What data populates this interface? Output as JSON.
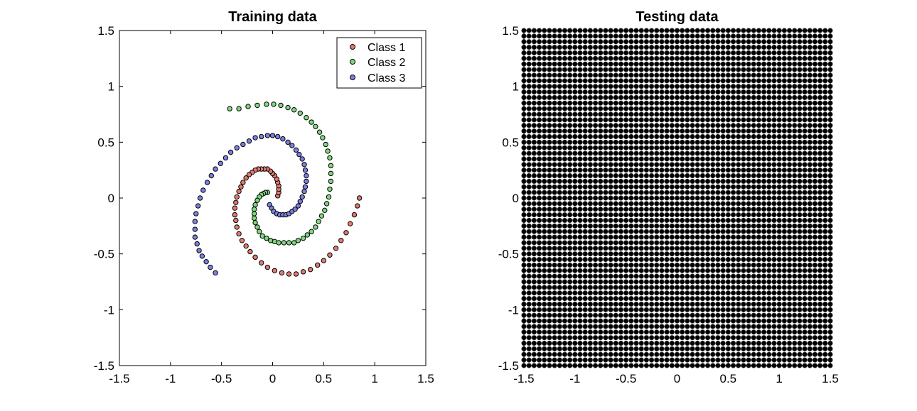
{
  "chart_data": [
    {
      "type": "scatter",
      "title": "Training data",
      "xlim": [
        -1.5,
        1.5
      ],
      "ylim": [
        -1.5,
        1.5
      ],
      "xticks": [
        "-1.5",
        "-1",
        "-0.5",
        "0",
        "0.5",
        "1",
        "1.5"
      ],
      "yticks": [
        "-1.5",
        "-1",
        "-0.5",
        "0",
        "0.5",
        "1",
        "1.5"
      ],
      "grid": false,
      "legend": "top-right",
      "series": [
        {
          "name": "Class 1",
          "color": "#e07a70",
          "x": [
            0.05,
            0.06,
            0.06,
            0.06,
            0.05,
            0.04,
            0.02,
            0.0,
            -0.02,
            -0.05,
            -0.08,
            -0.11,
            -0.14,
            -0.17,
            -0.2,
            -0.23,
            -0.26,
            -0.29,
            -0.31,
            -0.33,
            -0.35,
            -0.36,
            -0.37,
            -0.37,
            -0.36,
            -0.35,
            -0.33,
            -0.3,
            -0.26,
            -0.22,
            -0.17,
            -0.11,
            -0.05,
            0.02,
            0.09,
            0.16,
            0.23,
            0.3,
            0.37,
            0.44,
            0.5,
            0.56,
            0.62,
            0.67,
            0.72,
            0.76,
            0.8,
            0.83,
            0.85
          ],
          "y": [
            0.02,
            0.05,
            0.08,
            0.11,
            0.14,
            0.17,
            0.2,
            0.22,
            0.24,
            0.26,
            0.26,
            0.26,
            0.26,
            0.25,
            0.23,
            0.21,
            0.18,
            0.14,
            0.1,
            0.06,
            0.01,
            -0.04,
            -0.09,
            -0.15,
            -0.2,
            -0.26,
            -0.32,
            -0.38,
            -0.43,
            -0.48,
            -0.53,
            -0.58,
            -0.62,
            -0.65,
            -0.67,
            -0.68,
            -0.68,
            -0.66,
            -0.64,
            -0.6,
            -0.56,
            -0.51,
            -0.45,
            -0.38,
            -0.31,
            -0.23,
            -0.15,
            -0.07,
            0.0
          ]
        },
        {
          "name": "Class 2",
          "color": "#7dd87d",
          "x": [
            -0.05,
            -0.07,
            -0.09,
            -0.11,
            -0.13,
            -0.15,
            -0.17,
            -0.18,
            -0.18,
            -0.18,
            -0.17,
            -0.15,
            -0.13,
            -0.1,
            -0.06,
            -0.02,
            0.02,
            0.06,
            0.11,
            0.16,
            0.21,
            0.25,
            0.3,
            0.34,
            0.38,
            0.42,
            0.45,
            0.48,
            0.51,
            0.53,
            0.55,
            0.56,
            0.57,
            0.57,
            0.57,
            0.56,
            0.54,
            0.52,
            0.49,
            0.46,
            0.42,
            0.38,
            0.33,
            0.27,
            0.21,
            0.15,
            0.08,
            0.01,
            -0.06,
            -0.15,
            -0.24,
            -0.33,
            -0.42
          ],
          "y": [
            0.05,
            0.05,
            0.04,
            0.03,
            0.01,
            -0.02,
            -0.06,
            -0.1,
            -0.14,
            -0.18,
            -0.22,
            -0.26,
            -0.3,
            -0.34,
            -0.36,
            -0.38,
            -0.39,
            -0.4,
            -0.4,
            -0.4,
            -0.4,
            -0.38,
            -0.36,
            -0.33,
            -0.3,
            -0.26,
            -0.21,
            -0.16,
            -0.11,
            -0.05,
            0.01,
            0.08,
            0.15,
            0.22,
            0.29,
            0.36,
            0.42,
            0.48,
            0.54,
            0.59,
            0.64,
            0.68,
            0.72,
            0.76,
            0.79,
            0.81,
            0.83,
            0.84,
            0.84,
            0.83,
            0.82,
            0.8,
            0.8
          ]
        },
        {
          "name": "Class 3",
          "color": "#7b7fe0",
          "x": [
            -0.03,
            -0.01,
            0.01,
            0.04,
            0.07,
            0.1,
            0.13,
            0.16,
            0.19,
            0.22,
            0.25,
            0.27,
            0.29,
            0.31,
            0.32,
            0.33,
            0.33,
            0.32,
            0.31,
            0.29,
            0.26,
            0.23,
            0.19,
            0.15,
            0.1,
            0.05,
            0.0,
            -0.05,
            -0.11,
            -0.17,
            -0.23,
            -0.29,
            -0.35,
            -0.41,
            -0.46,
            -0.51,
            -0.56,
            -0.6,
            -0.64,
            -0.68,
            -0.71,
            -0.73,
            -0.75,
            -0.76,
            -0.76,
            -0.76,
            -0.74,
            -0.72,
            -0.69,
            -0.65,
            -0.61,
            -0.56
          ],
          "y": [
            -0.06,
            -0.09,
            -0.12,
            -0.14,
            -0.15,
            -0.15,
            -0.15,
            -0.14,
            -0.12,
            -0.1,
            -0.07,
            -0.03,
            0.01,
            0.06,
            0.1,
            0.15,
            0.2,
            0.25,
            0.3,
            0.35,
            0.39,
            0.43,
            0.47,
            0.5,
            0.53,
            0.55,
            0.56,
            0.56,
            0.55,
            0.54,
            0.51,
            0.48,
            0.45,
            0.41,
            0.36,
            0.31,
            0.26,
            0.2,
            0.14,
            0.07,
            0.0,
            -0.07,
            -0.14,
            -0.21,
            -0.28,
            -0.35,
            -0.41,
            -0.47,
            -0.52,
            -0.57,
            -0.62,
            -0.67
          ]
        }
      ]
    },
    {
      "type": "scatter",
      "title": "Testing data",
      "xlim": [
        -1.5,
        1.5
      ],
      "ylim": [
        -1.5,
        1.5
      ],
      "xticks": [
        "-1.5",
        "-1",
        "-0.5",
        "0",
        "0.5",
        "1",
        "1.5"
      ],
      "yticks": [
        "-1.5",
        "-1",
        "-0.5",
        "0",
        "0.5",
        "1",
        "1.5"
      ],
      "grid": false,
      "series": [
        {
          "color": "#000000",
          "grid_points": {
            "min": -1.5,
            "max": 1.5,
            "step": 0.05
          }
        }
      ]
    }
  ]
}
